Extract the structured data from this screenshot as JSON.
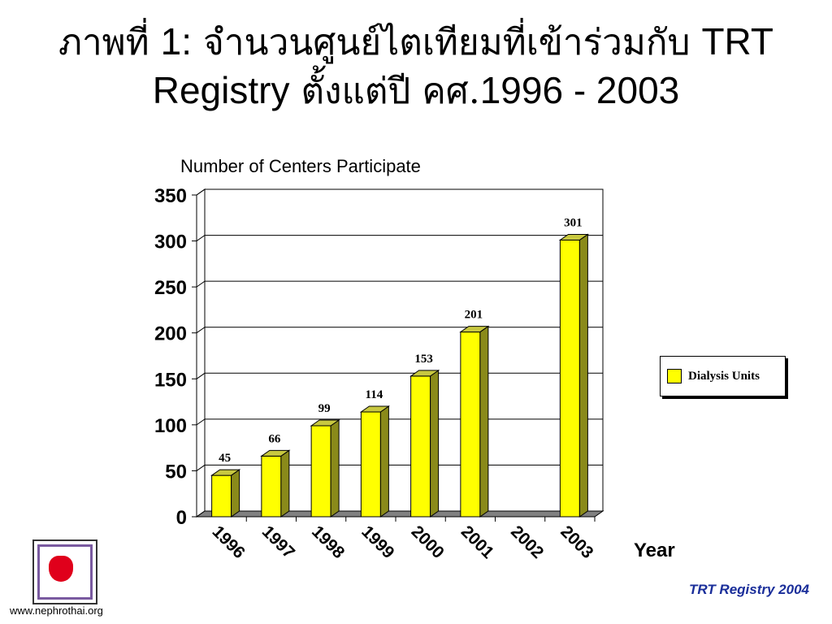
{
  "title": {
    "line1_th": "ภาพที่ ",
    "line1_num": "1:",
    "line1_th2": " จำนวนศูนย์ไตเทียมที่เข้าร่วมกับ ",
    "line1_en": "TRT",
    "line2_en": "Registry",
    "line2_th": " ตั้งแต่ปี คศ.",
    "line2_years": "1996 - 2003"
  },
  "footer": {
    "url": "www.nephrothai.org",
    "credit": "TRT Registry 2004"
  },
  "colors": {
    "bar_front": "#ffff00",
    "bar_side": "#8a8a1a",
    "bar_top": "#c8c840",
    "floor": "#808080",
    "credit": "#1a2e9a"
  },
  "chart_data": {
    "type": "bar",
    "title": "Number of Centers Participate",
    "xlabel": "Year",
    "ylabel": "",
    "categories": [
      "1996",
      "1997",
      "1998",
      "1999",
      "2000",
      "2001",
      "2002",
      "2003"
    ],
    "series": [
      {
        "name": "Dialysis Units",
        "values": [
          45,
          66,
          99,
          114,
          153,
          201,
          null,
          301
        ]
      }
    ],
    "data_labels": [
      "45",
      "66",
      "99",
      "114",
      "153",
      "201",
      "",
      "301"
    ],
    "ylim": [
      0,
      350
    ],
    "yticks": [
      0,
      50,
      100,
      150,
      200,
      250,
      300,
      350
    ],
    "grid": true,
    "legend_position": "right",
    "style": "3d"
  }
}
